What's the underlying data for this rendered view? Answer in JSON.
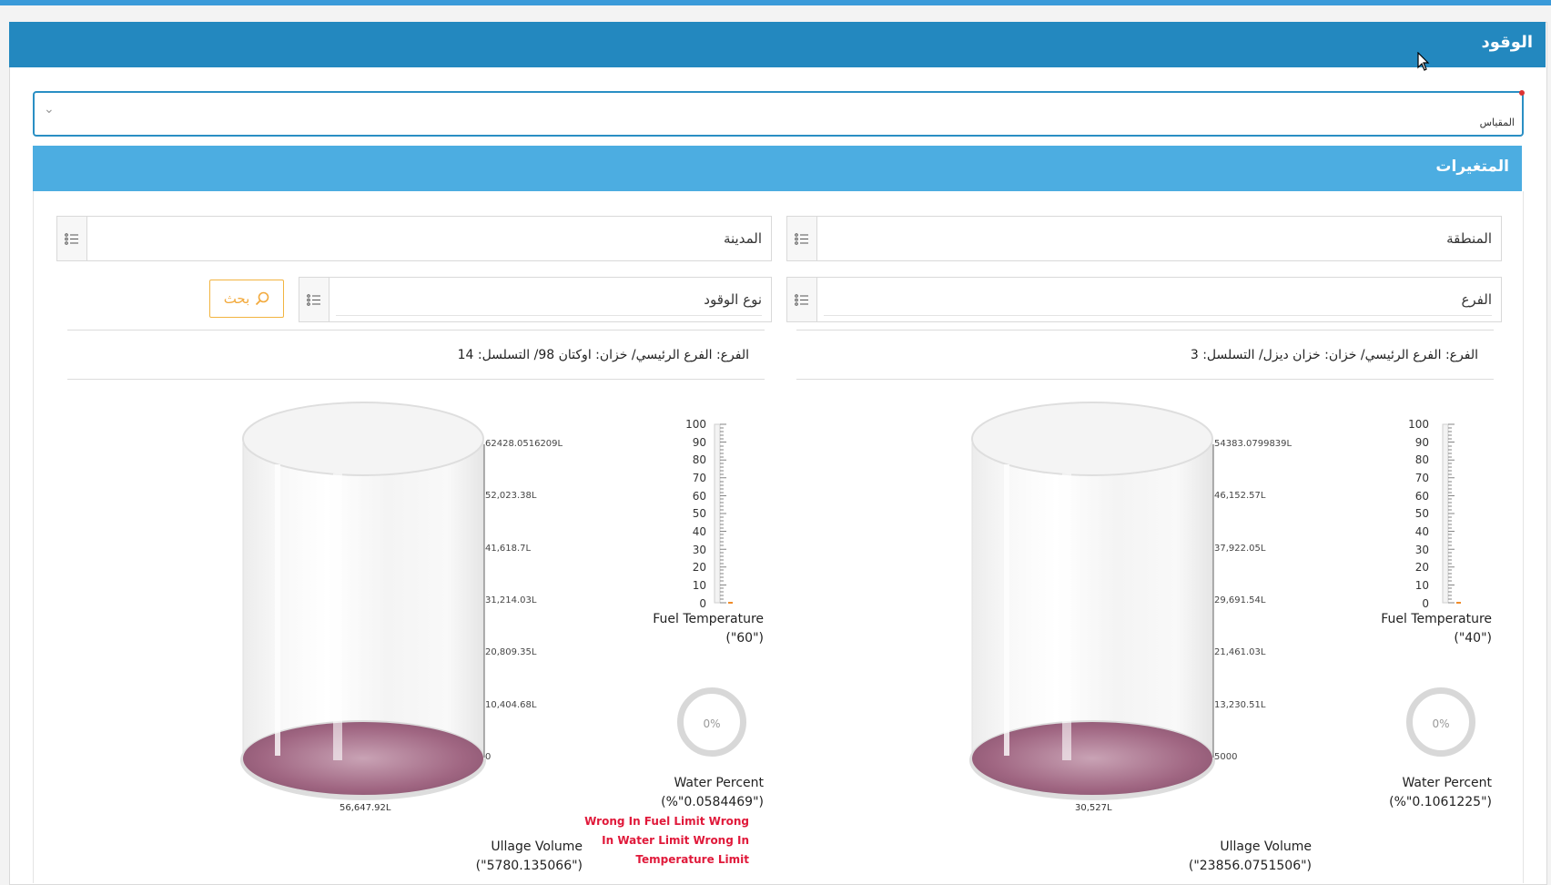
{
  "header": {
    "title": "الوقود"
  },
  "measure_select": {
    "label": "المقياس"
  },
  "variables": {
    "title": "المتغيرات",
    "filters": {
      "region": "المنطقة",
      "city": "المدينة",
      "branch": "الفرع",
      "fuel_type": "نوع الوقود"
    },
    "search_label": "بحث"
  },
  "tanks": [
    {
      "caption": "الفرع: الفرع الرئيسي/ خزان: خزان ديزل/ التسلسل: 3",
      "tank_axis": [
        "54383.0799839L",
        "46,152.57L",
        "37,922.05L",
        "29,691.54L",
        "21,461.03L",
        "13,230.51L",
        "5000"
      ],
      "tank_value": "30,527L",
      "thermo_ticks": [
        "100",
        "90",
        "80",
        "70",
        "60",
        "50",
        "40",
        "30",
        "20",
        "10",
        "0"
      ],
      "fuel_temp_label": "Fuel Temperature",
      "fuel_temp_value": "(\"40\")",
      "water_percent_donut": "0%",
      "water_percent_label": "Water Percent",
      "water_percent_value": "(%\"0.1061225\")",
      "ullage_label": "Ullage Volume",
      "ullage_value": "(\"23856.0751506\")",
      "error": ""
    },
    {
      "caption": "الفرع: الفرع الرئيسي/ خزان: اوكتان 98/ التسلسل: 14",
      "tank_axis": [
        "62428.0516209L",
        "52,023.38L",
        "41,618.7L",
        "31,214.03L",
        "20,809.35L",
        "10,404.68L",
        "0"
      ],
      "tank_value": "56,647.92L",
      "thermo_ticks": [
        "100",
        "90",
        "80",
        "70",
        "60",
        "50",
        "40",
        "30",
        "20",
        "10",
        "0"
      ],
      "fuel_temp_label": "Fuel Temperature",
      "fuel_temp_value": "(\"60\")",
      "water_percent_donut": "0%",
      "water_percent_label": "Water Percent",
      "water_percent_value": "(%\"0.0584469\")",
      "ullage_label": "Ullage Volume",
      "ullage_value": "(\"5780.135066\")",
      "error": "Wrong In Fuel Limit Wrong In Water Limit Wrong In Temperature Limit"
    }
  ],
  "colors": {
    "header": "#2388bf",
    "subheader": "#4cade1",
    "liquid": "#a06682",
    "error": "#e0193a",
    "search": "#f2b440"
  }
}
